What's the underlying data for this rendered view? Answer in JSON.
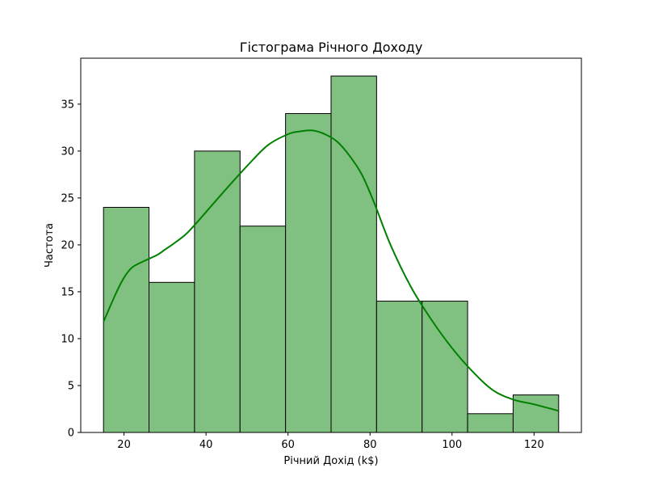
{
  "chart_data": {
    "type": "bar",
    "title": "Гістограма Річного Доходу",
    "xlabel": "Річний Дохід (k$)",
    "ylabel": "Частота",
    "bin_edges": [
      15.0,
      26.1,
      37.2,
      48.3,
      59.4,
      70.5,
      81.6,
      92.7,
      103.8,
      114.9,
      126.0
    ],
    "values": [
      24,
      16,
      30,
      22,
      34,
      38,
      14,
      14,
      2,
      4
    ],
    "xlim": [
      9.45,
      131.55
    ],
    "ylim": [
      0,
      39.9
    ],
    "xticks": [
      20,
      40,
      60,
      80,
      100,
      120
    ],
    "yticks": [
      0,
      5,
      10,
      15,
      20,
      25,
      30,
      35
    ],
    "bar_color": "#80c080",
    "bar_edge_color": "#000000",
    "kde": {
      "color": "#008000",
      "x": [
        15,
        18,
        20,
        22,
        25,
        28,
        30,
        32,
        35,
        38,
        40,
        45,
        50,
        55,
        60,
        63,
        66,
        69,
        72,
        75,
        78,
        81,
        85,
        90,
        95,
        100,
        105,
        110,
        115,
        120,
        126
      ],
      "y": [
        11.8,
        14.8,
        16.5,
        17.6,
        18.3,
        18.9,
        19.5,
        20.1,
        21.1,
        22.5,
        23.5,
        26.0,
        28.4,
        30.6,
        31.8,
        32.1,
        32.2,
        31.8,
        31.0,
        29.5,
        27.5,
        24.5,
        20.0,
        15.5,
        12.0,
        9.0,
        6.5,
        4.5,
        3.5,
        3.0,
        2.3
      ]
    }
  }
}
